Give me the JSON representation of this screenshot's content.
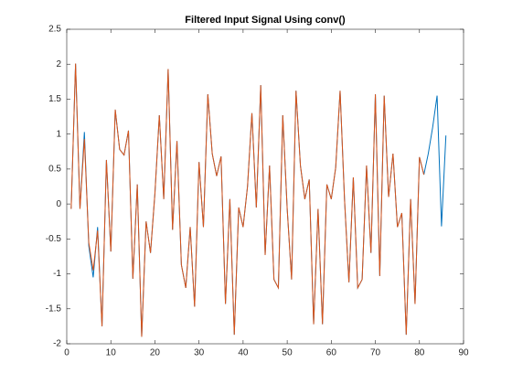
{
  "chart_data": {
    "type": "line",
    "title": "Filtered Input Signal Using conv()",
    "x": [
      1,
      2,
      3,
      4,
      5,
      6,
      7,
      8,
      9,
      10,
      11,
      12,
      13,
      14,
      15,
      16,
      17,
      18,
      19,
      20,
      21,
      22,
      23,
      24,
      25,
      26,
      27,
      28,
      29,
      30,
      31,
      32,
      33,
      34,
      35,
      36,
      37,
      38,
      39,
      40,
      41,
      42,
      43,
      44,
      45,
      46,
      47,
      48,
      49,
      50,
      51,
      52,
      53,
      54,
      55,
      56,
      57,
      58,
      59,
      60,
      61,
      62,
      63,
      64,
      65,
      66,
      67,
      68,
      69,
      70,
      71,
      72,
      73,
      74,
      75,
      76,
      77,
      78,
      79,
      80,
      81,
      82,
      83,
      84,
      85,
      86
    ],
    "series": [
      {
        "color": "#0072bd",
        "values": [
          -0.07,
          2.01,
          -0.07,
          1.03,
          -0.6,
          -1.05,
          -0.33,
          -1.75,
          0.63,
          -0.68,
          1.35,
          0.78,
          0.7,
          1.05,
          -1.07,
          0.28,
          -1.9,
          -0.25,
          -0.7,
          0.15,
          1.27,
          0.07,
          1.93,
          -0.37,
          0.9,
          -0.87,
          -1.2,
          -0.33,
          -1.47,
          0.6,
          -0.33,
          1.57,
          0.72,
          0.4,
          0.68,
          -1.43,
          0.07,
          -1.87,
          -0.05,
          -0.33,
          0.25,
          1.3,
          -0.05,
          1.7,
          -0.73,
          0.55,
          -1.08,
          -1.2,
          1.27,
          -0.07,
          -1.08,
          1.62,
          0.55,
          0.07,
          0.35,
          -1.72,
          -0.07,
          -1.72,
          0.28,
          0.07,
          0.52,
          1.62,
          0.07,
          -1.12,
          0.38,
          -1.2,
          -1.08,
          0.55,
          -0.7,
          1.57,
          -1.03,
          1.55,
          0.1,
          0.72,
          -0.33,
          -0.13,
          -1.87,
          0.07,
          -1.43,
          0.67,
          0.42,
          0.72,
          1.1,
          1.55,
          -0.32,
          0.98
        ]
      },
      {
        "color": "#d95319",
        "values": [
          -0.07,
          2.01,
          -0.07,
          0.93,
          -0.55,
          -0.95,
          -0.38,
          -1.75,
          0.63,
          -0.68,
          1.35,
          0.78,
          0.7,
          1.05,
          -1.07,
          0.28,
          -1.9,
          -0.25,
          -0.7,
          0.15,
          1.27,
          0.07,
          1.93,
          -0.37,
          0.9,
          -0.87,
          -1.2,
          -0.33,
          -1.47,
          0.6,
          -0.33,
          1.57,
          0.72,
          0.4,
          0.68,
          -1.43,
          0.07,
          -1.87,
          -0.05,
          -0.33,
          0.25,
          1.3,
          -0.05,
          1.7,
          -0.73,
          0.55,
          -1.08,
          -1.2,
          1.27,
          -0.07,
          -1.08,
          1.62,
          0.55,
          0.07,
          0.35,
          -1.72,
          -0.07,
          -1.72,
          0.28,
          0.07,
          0.52,
          1.62,
          0.07,
          -1.12,
          0.38,
          -1.2,
          -1.08,
          0.55,
          -0.7,
          1.57,
          -1.03,
          1.55,
          0.1,
          0.72,
          -0.33,
          -0.13,
          -1.87,
          0.07,
          -1.43,
          0.67,
          0.42,
          null,
          null,
          null,
          null,
          null
        ]
      }
    ],
    "xlim": [
      0,
      90
    ],
    "xticks": [
      0,
      10,
      20,
      30,
      40,
      50,
      60,
      70,
      80,
      90
    ],
    "ylim": [
      -2,
      2.5
    ],
    "yticks": [
      -2,
      -1.5,
      -1,
      -0.5,
      0,
      0.5,
      1,
      1.5,
      2,
      2.5
    ],
    "grid": false
  }
}
